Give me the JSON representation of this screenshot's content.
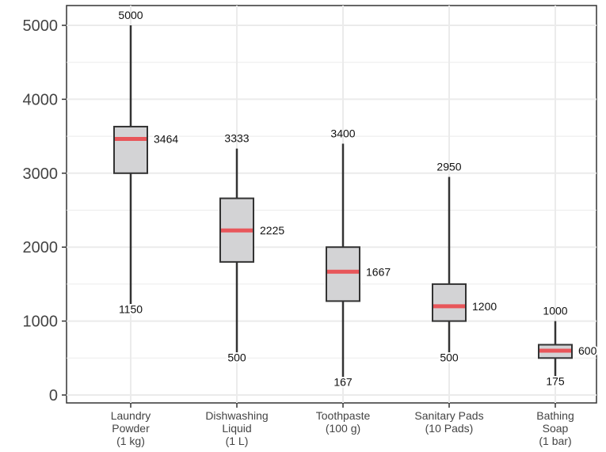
{
  "chart_data": {
    "type": "box",
    "title": "",
    "xlabel": "",
    "ylabel": "",
    "ylim": [
      0,
      5000
    ],
    "yticks": [
      0,
      1000,
      2000,
      3000,
      4000,
      5000
    ],
    "grid": true,
    "categories": [
      [
        "Laundry",
        "Powder",
        "(1 kg)"
      ],
      [
        "Dishwashing",
        "Liquid",
        "(1 L)"
      ],
      [
        "Toothpaste",
        "(100 g)"
      ],
      [
        "Sanitary Pads",
        "(10 Pads)"
      ],
      [
        "Bathing",
        "Soap",
        "(1 bar)"
      ]
    ],
    "boxes": [
      {
        "min": 1150,
        "q1": 3000,
        "median": 3464,
        "q3": 3630,
        "max": 5000
      },
      {
        "min": 500,
        "q1": 1800,
        "median": 2225,
        "q3": 2660,
        "max": 3333
      },
      {
        "min": 167,
        "q1": 1270,
        "median": 1667,
        "q3": 2000,
        "max": 3400
      },
      {
        "min": 500,
        "q1": 1000,
        "median": 1200,
        "q3": 1500,
        "max": 2950
      },
      {
        "min": 175,
        "q1": 500,
        "median": 600,
        "q3": 680,
        "max": 1000
      }
    ],
    "colors": {
      "box_fill": "#d3d3d5",
      "box_stroke": "#333333",
      "median": "#e8565a",
      "grid": "#ebebeb",
      "axis": "#333333"
    }
  }
}
